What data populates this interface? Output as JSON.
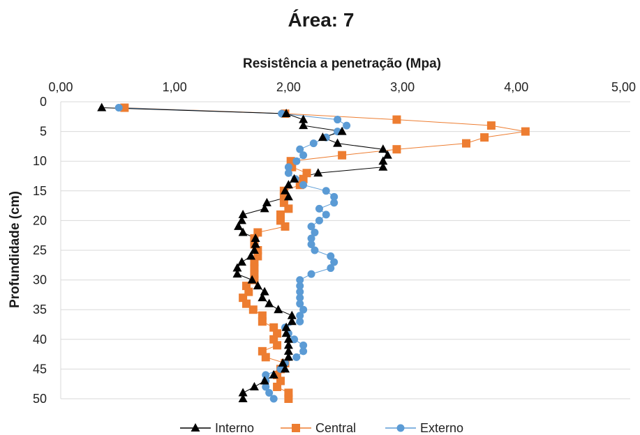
{
  "chart_data": {
    "type": "scatter",
    "title": "Área: 7",
    "xlabel": "Resistência a penetração (Mpa)",
    "ylabel": "Profundidade (cm)",
    "xlim": [
      0,
      5
    ],
    "ylim": [
      0,
      50
    ],
    "x_ticks": [
      "0,00",
      "1,00",
      "2,00",
      "3,00",
      "4,00",
      "5,00"
    ],
    "y_ticks": [
      "0",
      "5",
      "10",
      "15",
      "20",
      "25",
      "30",
      "35",
      "40",
      "45",
      "50"
    ],
    "x_axis_position": "top",
    "y_axis_inverted": true,
    "grid": "horizontal",
    "legend_position": "bottom",
    "depth": [
      1,
      2,
      3,
      4,
      5,
      6,
      7,
      8,
      9,
      10,
      11,
      12,
      13,
      14,
      15,
      16,
      17,
      18,
      19,
      20,
      21,
      22,
      23,
      24,
      25,
      26,
      27,
      28,
      29,
      30,
      31,
      32,
      33,
      34,
      35,
      36,
      37,
      38,
      39,
      40,
      41,
      42,
      43,
      44,
      45,
      46,
      47,
      48,
      49,
      50
    ],
    "series": [
      {
        "name": "Interno",
        "color": "#000000",
        "marker": "triangle",
        "values": [
          0.36,
          1.98,
          2.13,
          2.13,
          2.47,
          2.3,
          2.43,
          2.83,
          2.87,
          2.83,
          2.83,
          2.26,
          2.05,
          2.0,
          1.97,
          2.0,
          1.81,
          1.79,
          1.6,
          1.59,
          1.56,
          1.6,
          1.71,
          1.71,
          1.7,
          1.67,
          1.59,
          1.55,
          1.55,
          1.68,
          1.73,
          1.79,
          1.77,
          1.83,
          1.91,
          2.03,
          2.03,
          1.98,
          1.98,
          2.0,
          2.0,
          2.0,
          2.0,
          1.95,
          1.97,
          1.87,
          1.79,
          1.7,
          1.6,
          1.6
        ]
      },
      {
        "name": "Central",
        "color": "#ED7D31",
        "marker": "square",
        "values": [
          0.56,
          1.97,
          2.95,
          3.78,
          4.08,
          3.72,
          3.56,
          2.95,
          2.47,
          2.02,
          2.03,
          2.16,
          2.13,
          2.1,
          1.96,
          1.96,
          1.96,
          2.0,
          1.93,
          1.93,
          1.97,
          1.73,
          1.7,
          1.7,
          1.73,
          1.73,
          1.7,
          1.7,
          1.7,
          1.7,
          1.63,
          1.65,
          1.6,
          1.63,
          1.69,
          1.77,
          1.77,
          1.87,
          1.9,
          1.87,
          1.9,
          1.77,
          1.8,
          1.97,
          1.93,
          1.9,
          1.93,
          1.9,
          2.0,
          2.0
        ]
      },
      {
        "name": "Externo",
        "color": "#5B9BD5",
        "marker": "circle",
        "values": [
          0.51,
          1.94,
          2.43,
          2.51,
          2.43,
          2.33,
          2.22,
          2.1,
          2.13,
          2.07,
          2.0,
          2.0,
          2.06,
          2.13,
          2.33,
          2.4,
          2.4,
          2.27,
          2.33,
          2.27,
          2.2,
          2.23,
          2.2,
          2.2,
          2.23,
          2.37,
          2.4,
          2.37,
          2.2,
          2.1,
          2.1,
          2.1,
          2.1,
          2.1,
          2.13,
          2.1,
          2.1,
          1.97,
          2.0,
          2.05,
          2.13,
          2.13,
          2.07,
          1.97,
          1.93,
          1.8,
          1.8,
          1.8,
          1.83,
          1.87
        ]
      }
    ]
  }
}
